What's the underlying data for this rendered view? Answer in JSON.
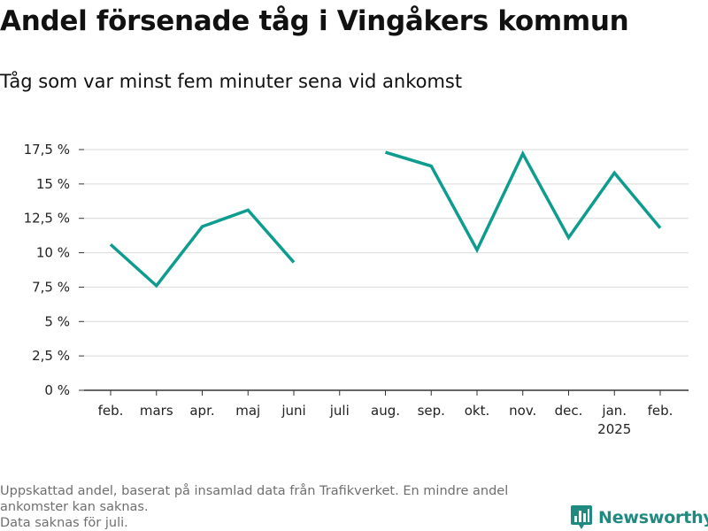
{
  "title": "Andel försenade tåg i Vingåkers kommun",
  "subtitle": "Tåg som var minst fem minuter sena vid ankomst",
  "chart_data": {
    "type": "line",
    "categories": [
      "feb.",
      "mars",
      "apr.",
      "maj",
      "juni",
      "juli",
      "aug.",
      "sep.",
      "okt.",
      "nov.",
      "dec.",
      "jan.",
      "feb."
    ],
    "category_sublabels": [
      "",
      "",
      "",
      "",
      "",
      "",
      "",
      "",
      "",
      "",
      "",
      "2025",
      ""
    ],
    "series": [
      {
        "values": [
          10.6,
          7.6,
          11.9,
          13.1,
          9.3,
          null,
          17.3,
          16.3,
          10.2,
          17.2,
          11.1,
          15.8,
          11.8
        ]
      }
    ],
    "y_ticks": [
      0,
      2.5,
      5,
      7.5,
      10,
      12.5,
      15,
      17.5
    ],
    "y_tick_labels": [
      "0 %",
      "2,5 %",
      "5 %",
      "7,5 %",
      "10 %",
      "12,5 %",
      "15 %",
      "17,5 %"
    ],
    "ylim": [
      0,
      17.5
    ],
    "grid": true,
    "line_color": "#0e9c8f"
  },
  "footnote": {
    "line1": "Uppskattad andel, baserat på insamlad data från Trafikverket. En mindre andel",
    "line2": "ankomster kan saknas.",
    "line3": "Data saknas för juli."
  },
  "brand": {
    "name": "Newsworthy",
    "icon": "bar-chart-logo-icon",
    "color": "#1f8a80"
  }
}
